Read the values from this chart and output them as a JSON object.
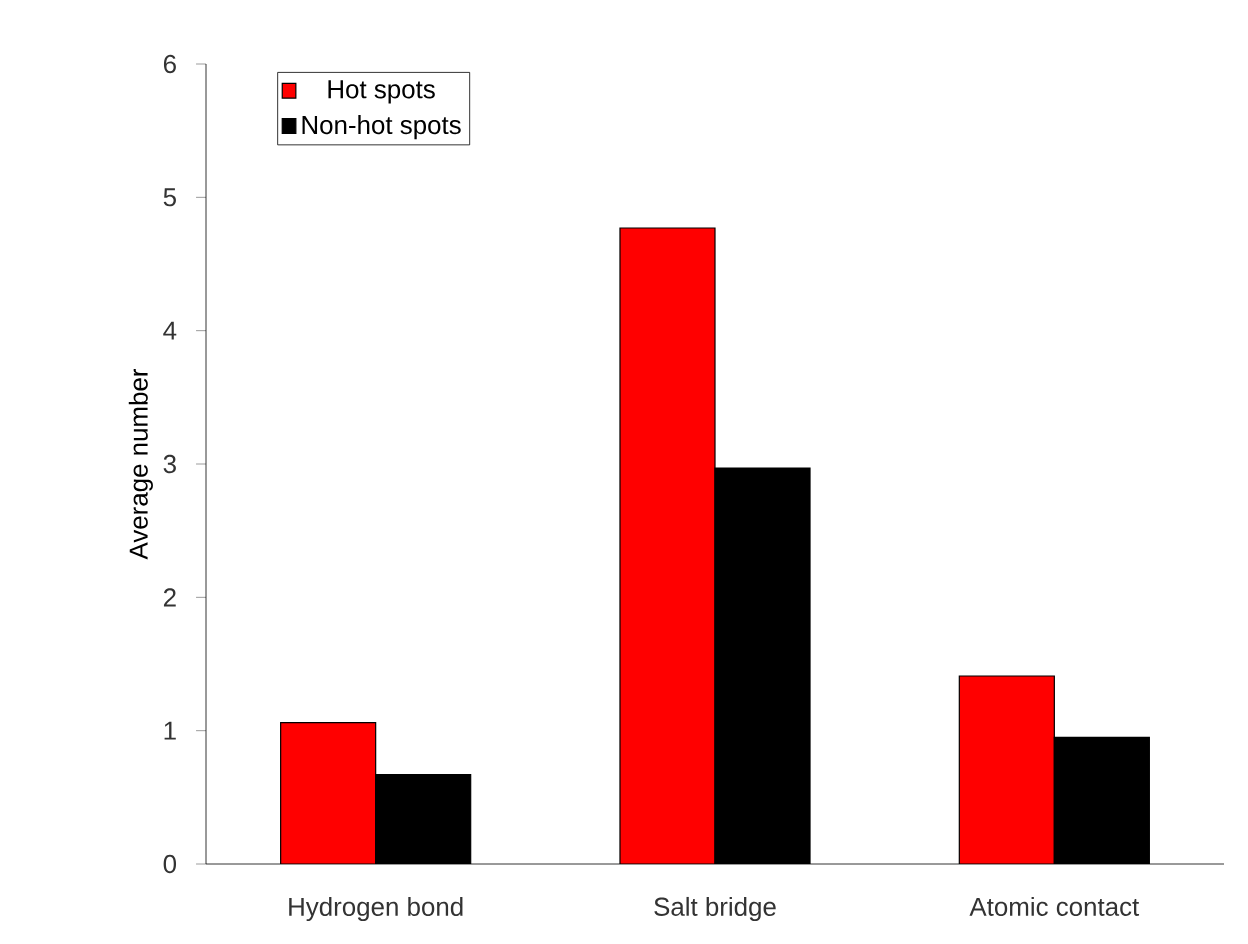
{
  "chart_data": {
    "type": "bar",
    "ylabel": "Average number",
    "categories": [
      "Hydrogen bond",
      "Salt bridge",
      "Atomic contact"
    ],
    "series": [
      {
        "name": "Hot spots",
        "color": "#ff0000",
        "values": [
          1.06,
          4.77,
          1.41
        ]
      },
      {
        "name": "Non-hot spots",
        "color": "#000000",
        "values": [
          0.67,
          2.97,
          0.95
        ]
      }
    ],
    "ylim": [
      0,
      6
    ],
    "yticks": [
      0,
      1,
      2,
      3,
      4,
      5,
      6
    ],
    "grid": false,
    "legend": "top left"
  }
}
